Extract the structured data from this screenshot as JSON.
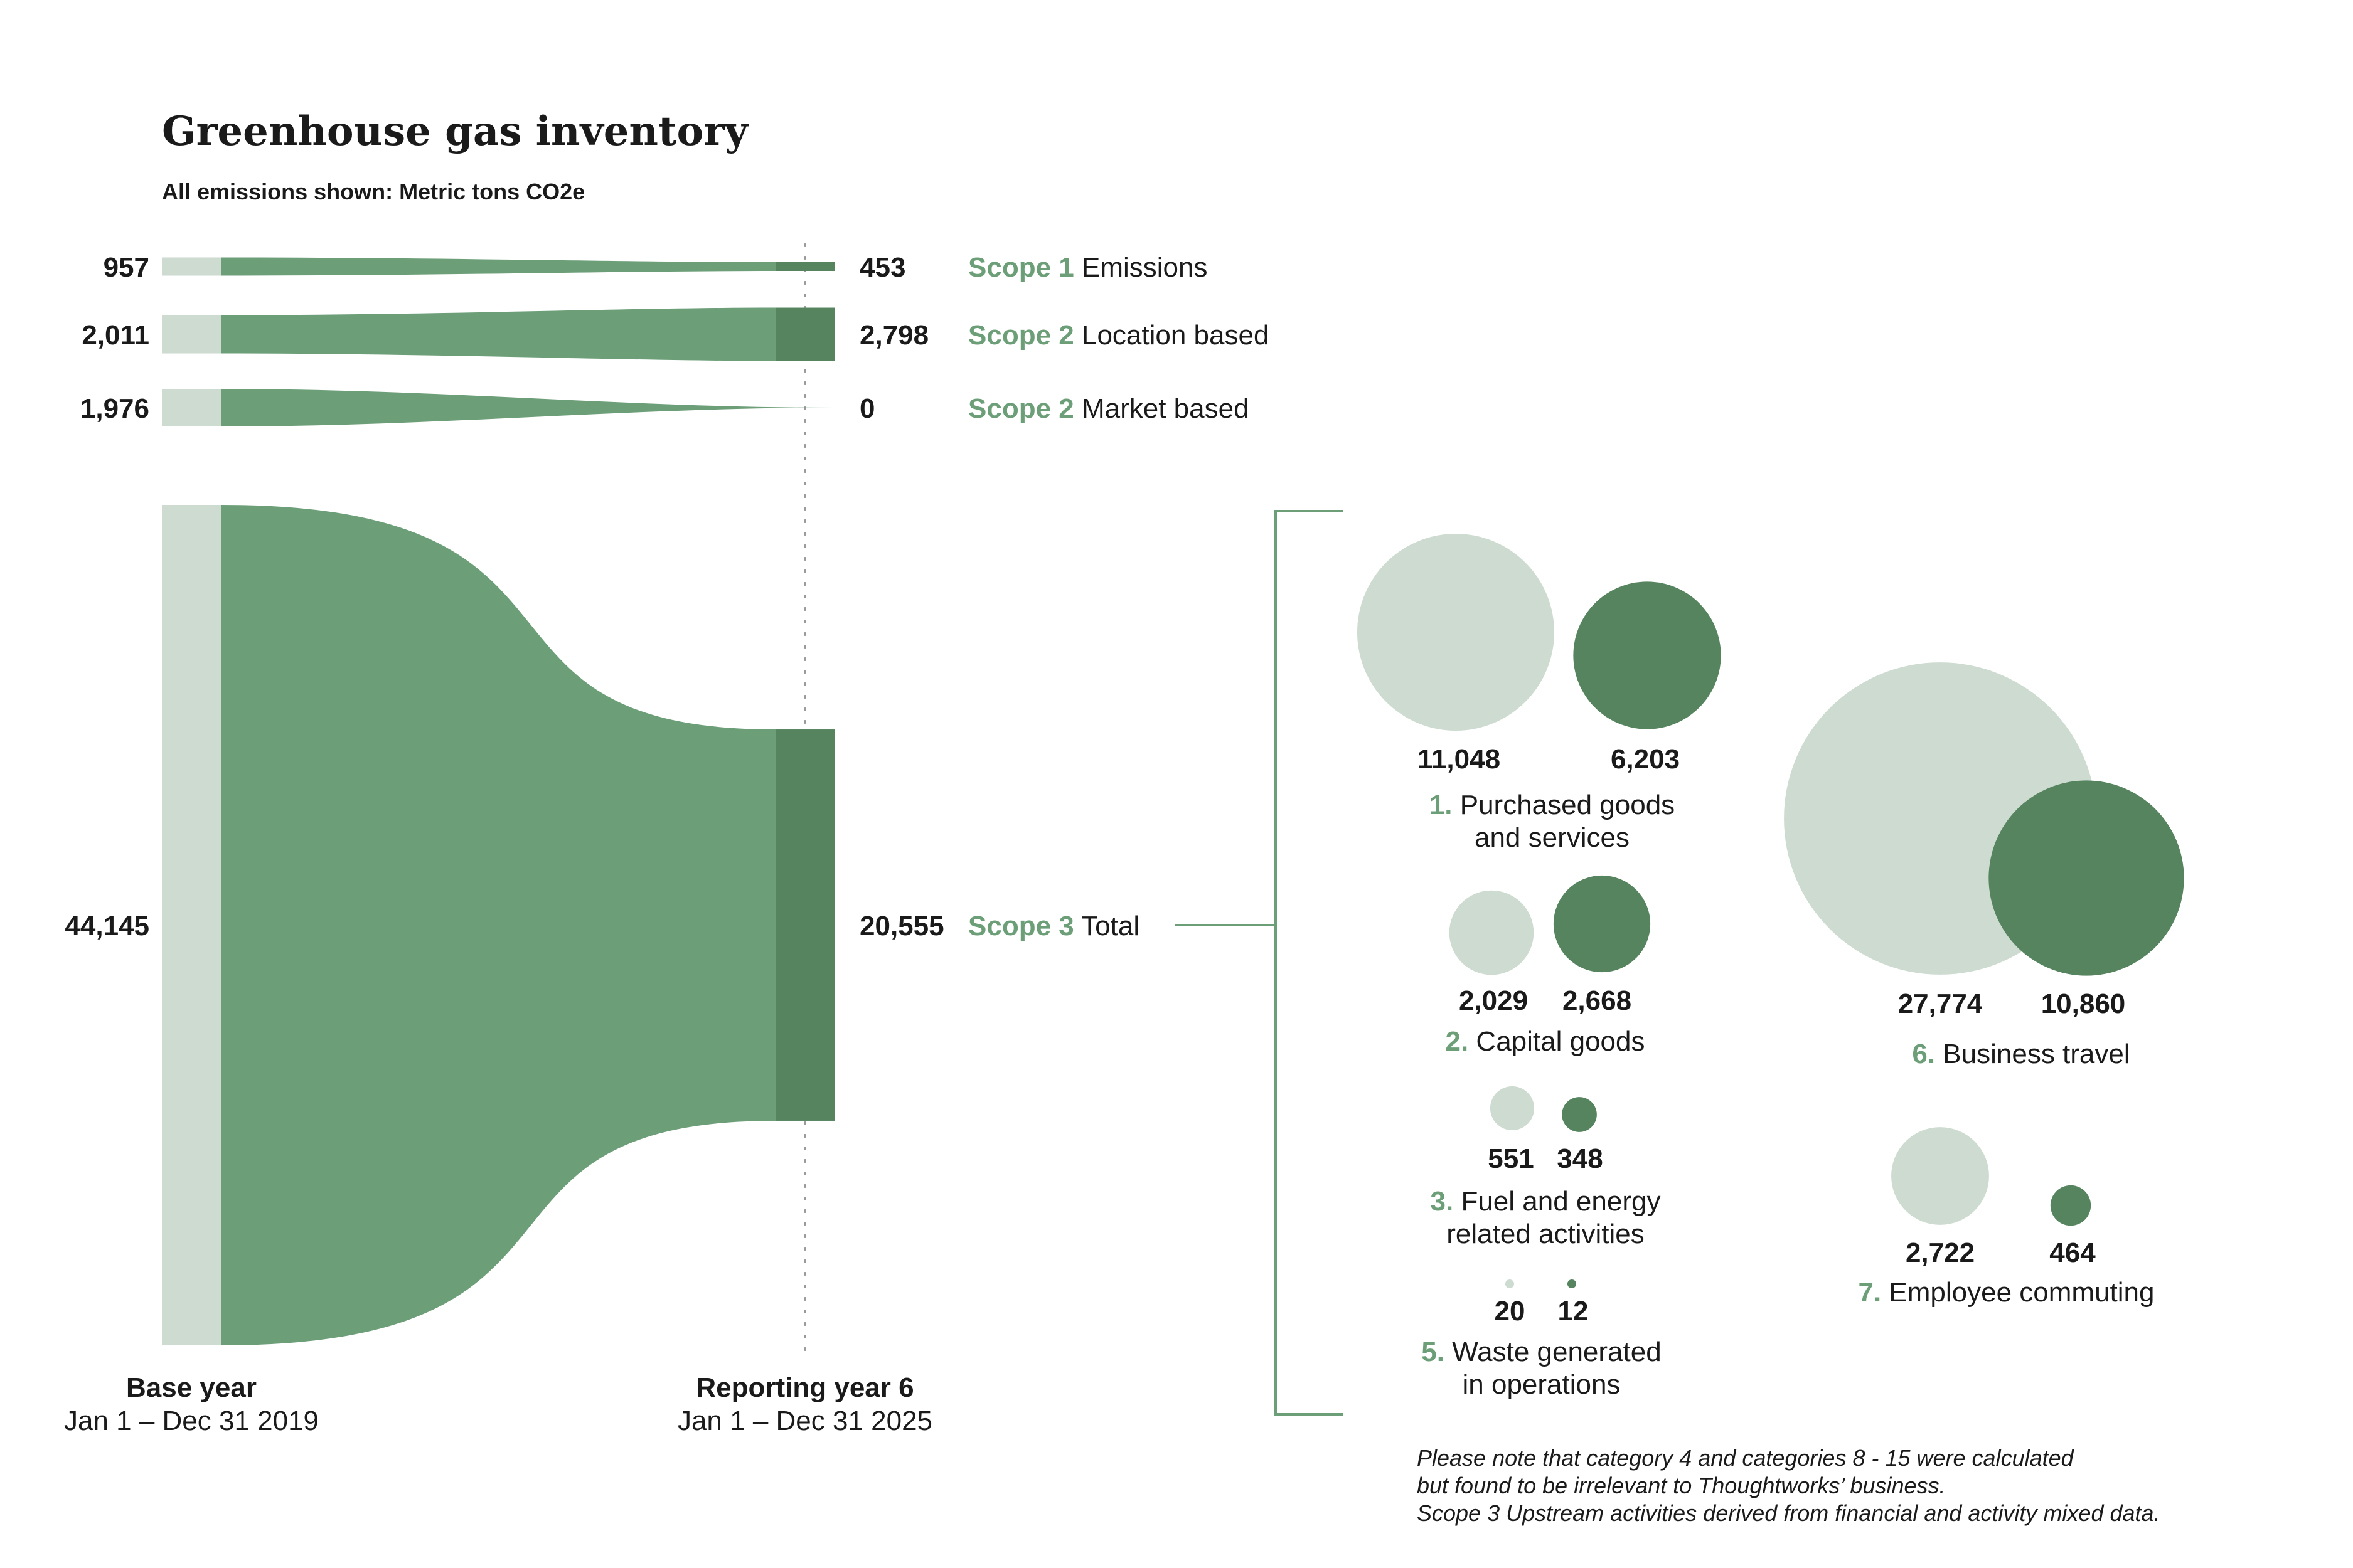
{
  "chart_data": {
    "type": "sankey",
    "title": "Greenhouse gas inventory",
    "subtitle": "All emissions shown: Metric tons CO2e",
    "colors": {
      "base": "#cddbd1",
      "flow": "#6c9e78",
      "reporting": "#55845f",
      "accent": "#6c9e78"
    },
    "periods": [
      {
        "name": "Base year",
        "range": "Jan 1 – Dec 31 2019"
      },
      {
        "name": "Reporting year 6",
        "range": "Jan 1 – Dec 31 2025"
      }
    ],
    "flows": [
      {
        "scope": "Scope 1",
        "label": "Emissions",
        "base": 957,
        "base_label": "957",
        "reporting": 453,
        "reporting_label": "453"
      },
      {
        "scope": "Scope 2",
        "label": "Location based",
        "base": 2011,
        "base_label": "2,011",
        "reporting": 2798,
        "reporting_label": "2,798"
      },
      {
        "scope": "Scope 2",
        "label": "Market based",
        "base": 1976,
        "base_label": "1,976",
        "reporting": 0,
        "reporting_label": "0"
      },
      {
        "scope": "Scope 3",
        "label": "Total",
        "base": 44145,
        "base_label": "44,145",
        "reporting": 20555,
        "reporting_label": "20,555"
      }
    ],
    "scope3_categories": [
      {
        "num": "1.",
        "lines": [
          "Purchased goods",
          "and services"
        ],
        "base": 11048,
        "base_label": "11,048",
        "reporting": 6203,
        "reporting_label": "6,203"
      },
      {
        "num": "2.",
        "lines": [
          "Capital goods"
        ],
        "base": 2029,
        "base_label": "2,029",
        "reporting": 2668,
        "reporting_label": "2,668"
      },
      {
        "num": "3.",
        "lines": [
          "Fuel and energy",
          "related activities"
        ],
        "base": 551,
        "base_label": "551",
        "reporting": 348,
        "reporting_label": "348"
      },
      {
        "num": "5.",
        "lines": [
          "Waste generated",
          "in operations"
        ],
        "base": 20,
        "base_label": "20",
        "reporting": 12,
        "reporting_label": "12"
      },
      {
        "num": "6.",
        "lines": [
          "Business travel"
        ],
        "base": 27774,
        "base_label": "27,774",
        "reporting": 10860,
        "reporting_label": "10,860"
      },
      {
        "num": "7.",
        "lines": [
          "Employee commuting"
        ],
        "base": 2722,
        "base_label": "2,722",
        "reporting": 464,
        "reporting_label": "464"
      }
    ],
    "note_lines": [
      "Please note that category 4 and categories 8 - 15 were calculated",
      "but found to be irrelevant to Thoughtworks’ business.",
      "Scope 3 Upstream activities derived from financial and activity mixed data."
    ]
  }
}
